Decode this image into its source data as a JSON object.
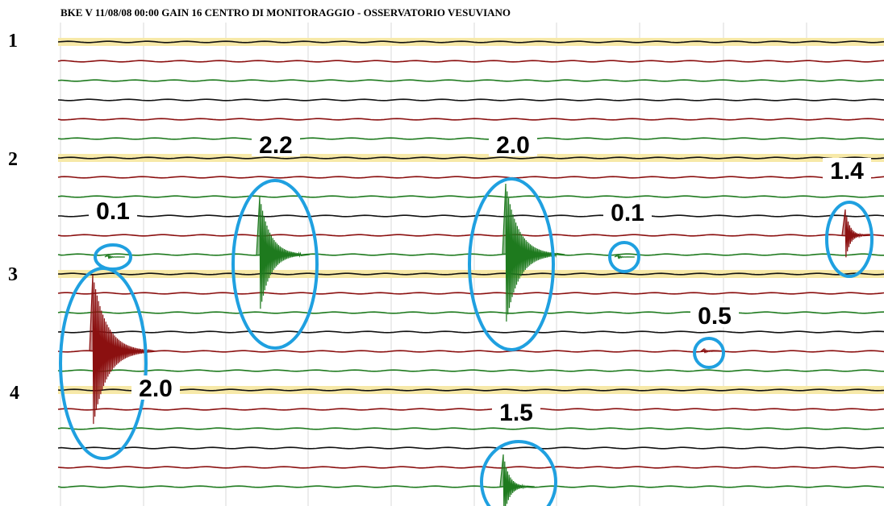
{
  "header": {
    "title": "BKE V 11/08/08 00:00 GAIN  16  CENTRO DI MONITORAGGIO - OSSERVATORIO VESUVIANO"
  },
  "row_labels": [
    "1",
    "2",
    "3",
    "4"
  ],
  "annotations": [
    "0.1",
    "2.2",
    "2.0",
    "0.1",
    "1.4",
    "0.5",
    "2.0",
    "1.5"
  ]
}
